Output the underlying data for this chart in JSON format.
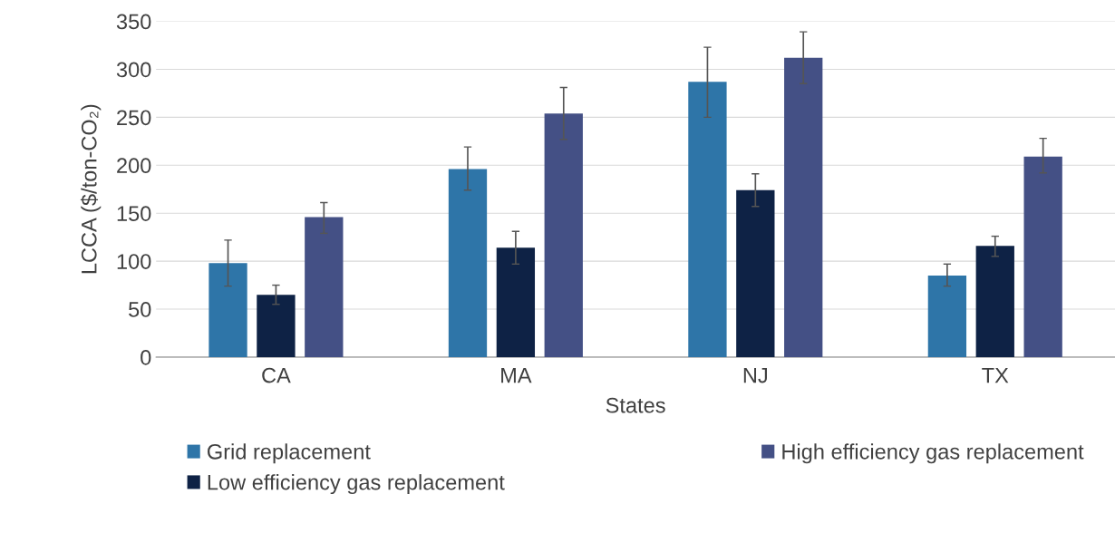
{
  "chart_data": {
    "type": "bar",
    "xlabel": "States",
    "ylabel": "LCCA ($/ton-CO₂)",
    "categories": [
      "CA",
      "MA",
      "NJ",
      "TX"
    ],
    "series": [
      {
        "name": "Grid replacement",
        "color": "#2e75a8",
        "values": [
          98,
          196,
          287,
          85
        ],
        "errors": [
          [
            74,
            122
          ],
          [
            174,
            219
          ],
          [
            250,
            323
          ],
          [
            74,
            97
          ]
        ]
      },
      {
        "name": "Low efficiency gas replacement",
        "color": "#0e2245",
        "values": [
          65,
          114,
          174,
          116
        ],
        "errors": [
          [
            55,
            75
          ],
          [
            97,
            131
          ],
          [
            157,
            191
          ],
          [
            105,
            126
          ]
        ]
      },
      {
        "name": "High efficiency gas replacement",
        "color": "#445085",
        "values": [
          146,
          254,
          312,
          209
        ],
        "errors": [
          [
            129,
            161
          ],
          [
            227,
            281
          ],
          [
            285,
            339
          ],
          [
            192,
            228
          ]
        ]
      }
    ],
    "ylim": [
      0,
      350
    ],
    "yticks": [
      0,
      50,
      100,
      150,
      200,
      250,
      300,
      350
    ],
    "grid": "y",
    "legend": "bottom"
  }
}
